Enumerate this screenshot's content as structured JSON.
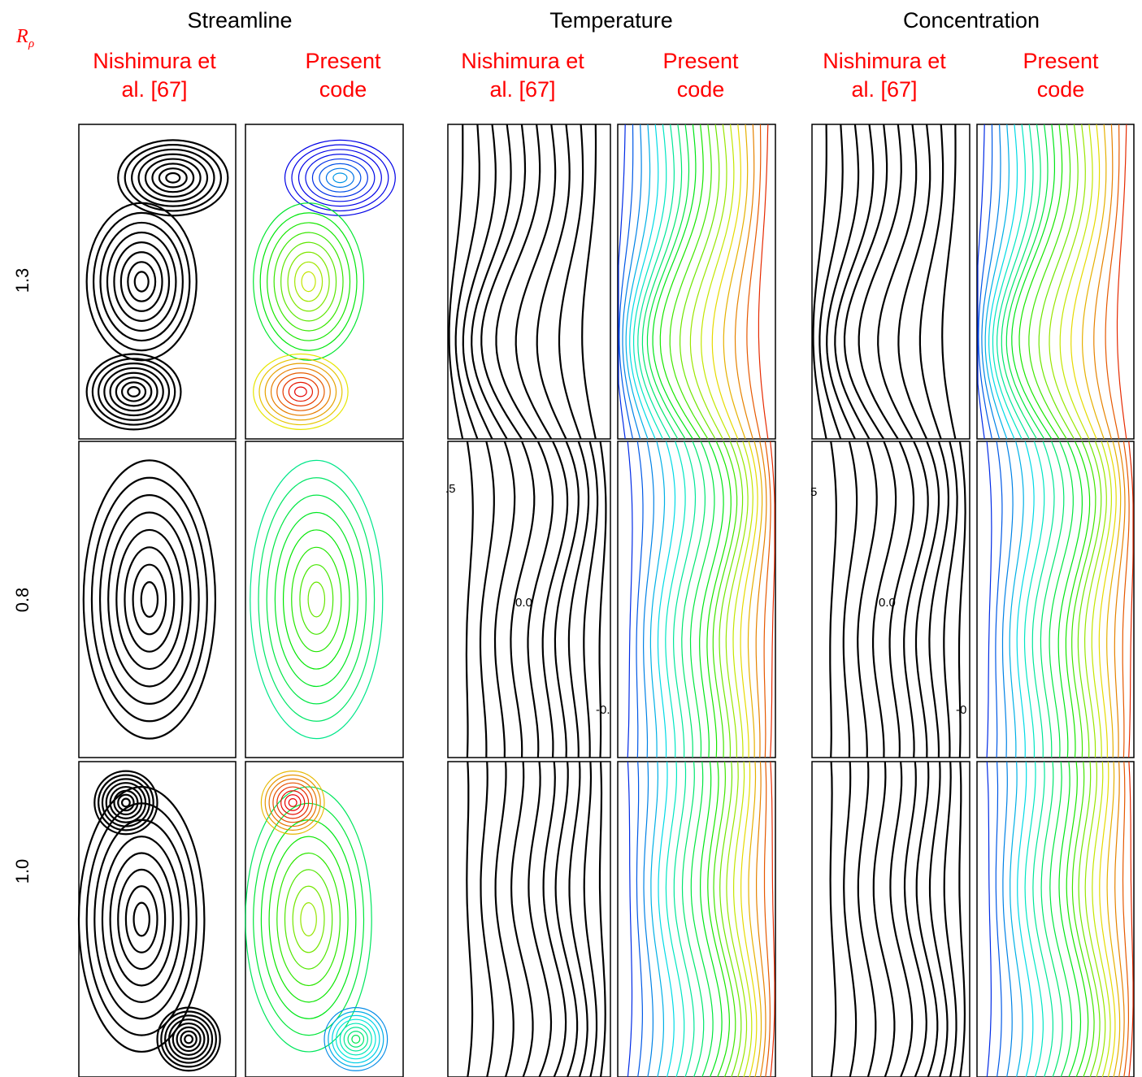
{
  "header": {
    "symbol": "R",
    "subscript": "ρ"
  },
  "columns": [
    {
      "title": "Streamline",
      "panels": [
        [
          "Nishimura et",
          "al. [67]"
        ],
        [
          "Present",
          "code"
        ]
      ]
    },
    {
      "title": "Temperature",
      "panels": [
        [
          "Nishimura et",
          "al. [67]"
        ],
        [
          "Present",
          "code"
        ]
      ]
    },
    {
      "title": "Concentration",
      "panels": [
        [
          "Nishimura et",
          "al. [67]"
        ],
        [
          "Present",
          "code"
        ]
      ]
    }
  ],
  "rows": [
    "1.3",
    "0.8",
    "1.0"
  ],
  "annotations": [
    ".5",
    "0.0",
    "-0.",
    "5",
    "0.0",
    "-0"
  ]
}
